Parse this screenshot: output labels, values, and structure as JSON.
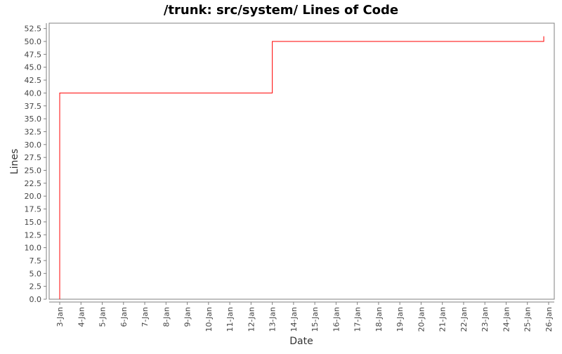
{
  "chart_data": {
    "type": "line",
    "step": true,
    "title": "/trunk: src/system/ Lines of Code",
    "xlabel": "Date",
    "ylabel": "Lines",
    "ylim": [
      0,
      53.5
    ],
    "yticks": [
      "0.0",
      "2.5",
      "5.0",
      "7.5",
      "10.0",
      "12.5",
      "15.0",
      "17.5",
      "20.0",
      "22.5",
      "25.0",
      "27.5",
      "30.0",
      "32.5",
      "35.0",
      "37.5",
      "40.0",
      "42.5",
      "45.0",
      "47.5",
      "50.0",
      "52.5"
    ],
    "xticks": [
      "3-Jan",
      "4-Jan",
      "5-Jan",
      "6-Jan",
      "7-Jan",
      "8-Jan",
      "9-Jan",
      "10-Jan",
      "11-Jan",
      "12-Jan",
      "13-Jan",
      "14-Jan",
      "15-Jan",
      "16-Jan",
      "17-Jan",
      "18-Jan",
      "19-Jan",
      "20-Jan",
      "21-Jan",
      "22-Jan",
      "23-Jan",
      "24-Jan",
      "25-Jan",
      "26-Jan"
    ],
    "grid": false,
    "series": [
      {
        "color": "#ff0000",
        "points": [
          {
            "x": "3-Jan 00:00",
            "y": 0
          },
          {
            "x": "3-Jan 00:00",
            "y": 40
          },
          {
            "x": "13-Jan 00:00",
            "y": 50
          },
          {
            "x": "25-Jan 18:30",
            "y": 51
          }
        ]
      }
    ]
  }
}
